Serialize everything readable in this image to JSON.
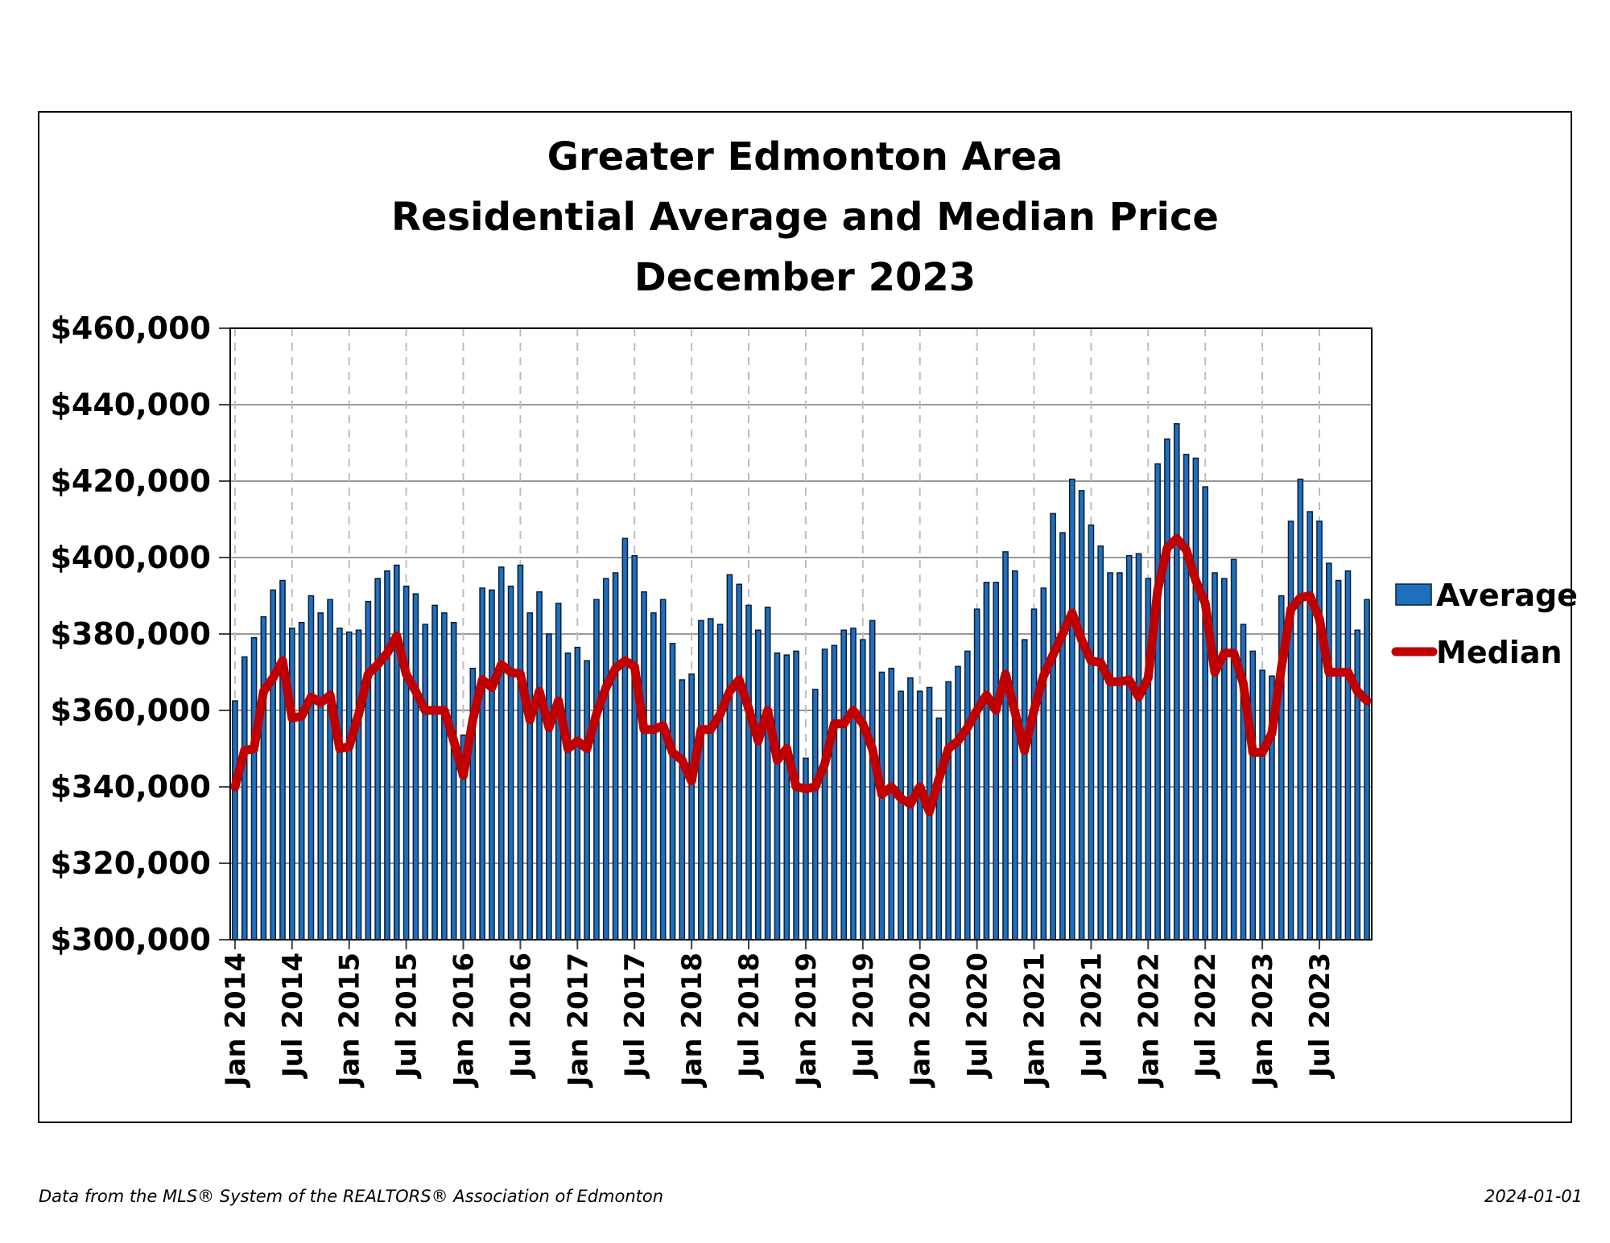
{
  "chart_data": {
    "type": "bar",
    "title_lines": [
      "Greater Edmonton Area",
      "Residential Average and Median Price",
      "December 2023"
    ],
    "ylim": [
      300000,
      460000
    ],
    "y_ticks": [
      "$300,000",
      "$320,000",
      "$340,000",
      "$360,000",
      "$380,000",
      "$400,000",
      "$420,000",
      "$440,000",
      "$460,000"
    ],
    "x_tick_labels": [
      "Jan 2014",
      "Jul 2014",
      "Jan 2015",
      "Jul 2015",
      "Jan 2016",
      "Jul 2016",
      "Jan 2017",
      "Jul 2017",
      "Jan 2018",
      "Jul 2018",
      "Jan 2019",
      "Jul 2019",
      "Jan 2020",
      "Jul 2020",
      "Jan 2021",
      "Jul 2021",
      "Jan 2022",
      "Jul 2022",
      "Jan 2023",
      "Jul 2023"
    ],
    "first_month": "Jan 2014",
    "last_month": "Dec 2023",
    "grid": true,
    "legend_position": "right",
    "series": [
      {
        "name": "Average",
        "type": "bar",
        "color": "#1f6fbf",
        "values": [
          362500,
          374000,
          379000,
          384500,
          391500,
          394000,
          381500,
          383000,
          390000,
          385500,
          389000,
          381500,
          380500,
          381000,
          388500,
          394500,
          396500,
          398000,
          392500,
          390500,
          382500,
          387500,
          385500,
          383000,
          353500,
          371000,
          392000,
          391500,
          397500,
          392500,
          398000,
          385500,
          391000,
          380000,
          388000,
          375000,
          376500,
          373000,
          389000,
          394500,
          396000,
          405000,
          400500,
          391000,
          385500,
          389000,
          377500,
          368000,
          369500,
          383500,
          384000,
          382500,
          395500,
          393000,
          387500,
          381000,
          387000,
          375000,
          374500,
          375500,
          347500,
          365500,
          376000,
          377000,
          381000,
          381500,
          378500,
          383500,
          370000,
          371000,
          365000,
          368500,
          365000,
          366000,
          358000,
          367500,
          371500,
          375500,
          386500,
          393500,
          393500,
          401500,
          396500,
          378500,
          386500,
          392000,
          411500,
          406500,
          420500,
          417500,
          408500,
          403000,
          396000,
          396000,
          400500,
          401000,
          394500,
          424500,
          431000,
          435000,
          427000,
          426000,
          418500,
          396000,
          394500,
          399500,
          382500,
          375500,
          370500,
          369000,
          390000,
          409500,
          420500,
          412000,
          409500,
          398500,
          394000,
          396500,
          381000,
          389000
        ]
      },
      {
        "name": "Median",
        "type": "line",
        "color": "#c00000",
        "values": [
          340000,
          349500,
          350000,
          365000,
          368500,
          373000,
          358000,
          358500,
          363500,
          362000,
          364000,
          350000,
          350500,
          359000,
          369500,
          372000,
          375000,
          379500,
          369500,
          365000,
          360000,
          360000,
          360000,
          352000,
          343000,
          357500,
          368000,
          366000,
          372000,
          370000,
          369500,
          357500,
          365000,
          355500,
          362500,
          350000,
          352000,
          350000,
          359000,
          366000,
          371000,
          373000,
          371500,
          355000,
          355000,
          356000,
          349000,
          347000,
          341500,
          355000,
          355000,
          359000,
          365000,
          368000,
          360500,
          352000,
          360000,
          347000,
          350000,
          340000,
          339500,
          340000,
          346000,
          356500,
          356500,
          360000,
          356500,
          350000,
          338000,
          340000,
          337000,
          335500,
          340000,
          333500,
          342000,
          350000,
          352000,
          355500,
          360000,
          364000,
          360000,
          369500,
          359500,
          349500,
          360000,
          369000,
          374500,
          380000,
          385500,
          378500,
          373000,
          372500,
          367500,
          367500,
          368000,
          363500,
          368500,
          391500,
          402500,
          405000,
          402000,
          394000,
          388000,
          370000,
          375000,
          375000,
          367000,
          349000,
          349000,
          354000,
          371000,
          386500,
          389500,
          390000,
          384000,
          370000,
          370000,
          370000,
          365000,
          362500
        ]
      }
    ]
  },
  "footer": {
    "source": "Data from the MLS® System of the REALTORS® Association of Edmonton",
    "date": "2024-01-01"
  }
}
